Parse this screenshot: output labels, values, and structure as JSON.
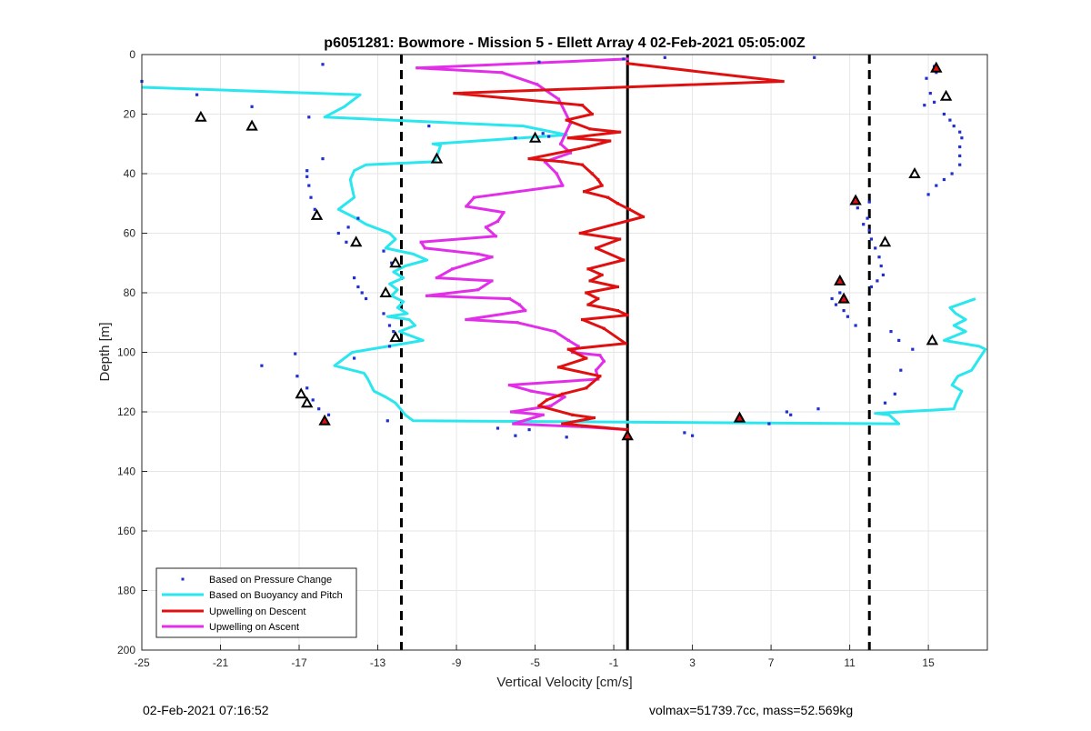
{
  "chart_data": {
    "type": "line",
    "title": "p6051281: Bowmore - Mission 5 - Ellett Array 4 02-Feb-2021 05:05:00Z",
    "xlabel": "Vertical Velocity [cm/s]",
    "ylabel": "Depth [m]",
    "xlim": [
      -25,
      18
    ],
    "ylim": [
      0,
      200
    ],
    "y_reversed": true,
    "grid": true,
    "legend_position": "bottom-left",
    "x_ticks": [
      -25,
      -21,
      -17,
      -13,
      -9,
      -5,
      -1,
      3,
      7,
      11,
      15
    ],
    "y_ticks": [
      0,
      20,
      40,
      60,
      80,
      100,
      120,
      140,
      160,
      180,
      200
    ],
    "reference_lines": {
      "solid_x": -0.3,
      "dashed_x": [
        -11.8,
        12
      ]
    },
    "series": [
      {
        "name": "Based on Pressure Change",
        "style": "points",
        "color": "#1f2fd0",
        "points": [
          [
            -25,
            9
          ],
          [
            -22.2,
            13.5
          ],
          [
            -15.8,
            3.3
          ],
          [
            -19.4,
            17.5
          ],
          [
            -16.5,
            21
          ],
          [
            -10.4,
            24
          ],
          [
            -6,
            28
          ],
          [
            -15.8,
            35
          ],
          [
            -16.6,
            39
          ],
          [
            -16.6,
            41
          ],
          [
            -16.5,
            44
          ],
          [
            -16.4,
            48
          ],
          [
            -16.2,
            52
          ],
          [
            -14,
            55
          ],
          [
            -14.5,
            58
          ],
          [
            -15,
            60
          ],
          [
            -14.6,
            63
          ],
          [
            -14.2,
            75
          ],
          [
            -14,
            78
          ],
          [
            -13.8,
            80
          ],
          [
            -13.6,
            82
          ],
          [
            -12.7,
            87
          ],
          [
            -12.4,
            91
          ],
          [
            -12.2,
            93
          ],
          [
            -12.4,
            98
          ],
          [
            -14.2,
            102
          ],
          [
            -17.2,
            100.5
          ],
          [
            -18.9,
            104.5
          ],
          [
            -17.1,
            108
          ],
          [
            -16.6,
            112
          ],
          [
            -16.3,
            116
          ],
          [
            -16,
            119
          ],
          [
            -15.5,
            121
          ],
          [
            -12.5,
            123
          ],
          [
            -6.9,
            125.5
          ],
          [
            -6,
            128
          ],
          [
            -5.3,
            126
          ],
          [
            -3.4,
            128.5
          ],
          [
            -0.3,
            129
          ],
          [
            3,
            128
          ],
          [
            2.6,
            127
          ],
          [
            6.9,
            124
          ],
          [
            8,
            121
          ],
          [
            7.8,
            120
          ],
          [
            9.4,
            119
          ],
          [
            -4.3,
            27.5
          ],
          [
            -4.6,
            26.5
          ],
          [
            -4.8,
            2.5
          ],
          [
            -0.5,
            1.5
          ],
          [
            1.6,
            1
          ],
          [
            9.2,
            1
          ],
          [
            15.3,
            4
          ],
          [
            15.4,
            6
          ],
          [
            14.9,
            8
          ],
          [
            15.1,
            13
          ],
          [
            15.3,
            16
          ],
          [
            14.8,
            17
          ],
          [
            15.8,
            20
          ],
          [
            16.1,
            22
          ],
          [
            16.3,
            24
          ],
          [
            16.6,
            26
          ],
          [
            16.7,
            28
          ],
          [
            16.6,
            31
          ],
          [
            16.6,
            34
          ],
          [
            16.6,
            37
          ],
          [
            16.2,
            40
          ],
          [
            15.8,
            42
          ],
          [
            15.4,
            44
          ],
          [
            15,
            47
          ],
          [
            12,
            49.5
          ],
          [
            11.4,
            51.5
          ],
          [
            11.9,
            55
          ],
          [
            11.7,
            57
          ],
          [
            12,
            59
          ],
          [
            12.1,
            62
          ],
          [
            12.3,
            65
          ],
          [
            12.5,
            68
          ],
          [
            12.6,
            71
          ],
          [
            12.7,
            74
          ],
          [
            12.4,
            76
          ],
          [
            12.1,
            78
          ],
          [
            10.5,
            80
          ],
          [
            10.1,
            82
          ],
          [
            10.3,
            84
          ],
          [
            10.7,
            86
          ],
          [
            10.9,
            88
          ],
          [
            11.3,
            91
          ],
          [
            13.1,
            93
          ],
          [
            13.5,
            96
          ],
          [
            14.2,
            99
          ],
          [
            13.6,
            106
          ],
          [
            13.3,
            114
          ],
          [
            12.8,
            117
          ],
          [
            -12.3,
            70
          ],
          [
            -12.7,
            66
          ]
        ]
      },
      {
        "name": "Based on Buoyancy and Pitch",
        "style": "line",
        "color": "#2ae6ee",
        "segments": [
          [
            [
              -25,
              11
            ],
            [
              -13.9,
              13.5
            ],
            [
              -14.7,
              17.5
            ],
            [
              -15.7,
              21
            ],
            [
              -5.6,
              24
            ],
            [
              -3.4,
              27
            ],
            [
              -10.2,
              30
            ],
            [
              -9.8,
              30.5
            ],
            [
              -10.1,
              36
            ],
            [
              -13.6,
              37
            ],
            [
              -14.2,
              39
            ],
            [
              -14.4,
              42
            ],
            [
              -14.3,
              45
            ],
            [
              -14.2,
              48
            ],
            [
              -14.8,
              51
            ],
            [
              -15,
              52
            ],
            [
              -14.1,
              55
            ],
            [
              -13.6,
              57
            ],
            [
              -12.4,
              60
            ],
            [
              -12.1,
              62
            ],
            [
              -12.6,
              65
            ],
            [
              -11.2,
              67
            ],
            [
              -10.5,
              69
            ],
            [
              -11.6,
              71
            ],
            [
              -12.2,
              73
            ],
            [
              -11.7,
              75
            ],
            [
              -12.4,
              77
            ],
            [
              -12,
              79
            ],
            [
              -12.3,
              81
            ],
            [
              -11.7,
              83
            ],
            [
              -12,
              85
            ],
            [
              -11.5,
              87
            ],
            [
              -12.5,
              88
            ],
            [
              -11.4,
              89
            ],
            [
              -11.1,
              91
            ],
            [
              -11.9,
              93
            ],
            [
              -10.7,
              96
            ],
            [
              -14.3,
              100
            ],
            [
              -15.2,
              104.5
            ],
            [
              -13.7,
              107
            ],
            [
              -13.5,
              109
            ],
            [
              -13.2,
              113
            ],
            [
              -12.6,
              115
            ],
            [
              -12.1,
              117
            ],
            [
              -11.6,
              121
            ],
            [
              -11.2,
              123
            ],
            [
              13.5,
              124
            ],
            [
              13,
              121
            ],
            [
              12.3,
              120.5
            ],
            [
              16.3,
              119
            ],
            [
              16.4,
              117
            ],
            [
              16.7,
              113
            ],
            [
              16.2,
              111
            ],
            [
              16.5,
              108
            ],
            [
              17.2,
              106
            ],
            [
              17.9,
              99
            ],
            [
              17.6,
              98
            ],
            [
              15.8,
              96
            ],
            [
              16.9,
              93
            ],
            [
              16.3,
              91
            ],
            [
              16.9,
              89
            ],
            [
              16.4,
              87
            ],
            [
              16.1,
              85
            ],
            [
              17.4,
              82
            ]
          ]
        ]
      },
      {
        "name": "Upwelling on Descent",
        "style": "line",
        "color": "#e01010",
        "points": [
          [
            -0.3,
            3
          ],
          [
            7.6,
            9
          ],
          [
            -9.1,
            13
          ],
          [
            -2.6,
            17
          ],
          [
            -2.1,
            20
          ],
          [
            -3.4,
            22
          ],
          [
            -2.2,
            25
          ],
          [
            -0.7,
            26
          ],
          [
            -3.3,
            28
          ],
          [
            -1.2,
            29
          ],
          [
            -2.3,
            31
          ],
          [
            -5.3,
            35
          ],
          [
            -3.6,
            36
          ],
          [
            -2.6,
            37
          ],
          [
            -2.1,
            40
          ],
          [
            -1.8,
            42
          ],
          [
            -1.6,
            44
          ],
          [
            -2.5,
            46
          ],
          [
            -1.3,
            48
          ],
          [
            -0.8,
            50
          ],
          [
            -0.2,
            52
          ],
          [
            0.5,
            54.5
          ],
          [
            -2.7,
            60
          ],
          [
            -0.7,
            62
          ],
          [
            -1.9,
            65
          ],
          [
            -0.5,
            69
          ],
          [
            -2.3,
            72
          ],
          [
            -1.6,
            74
          ],
          [
            -2.2,
            76
          ],
          [
            -0.8,
            78
          ],
          [
            -2.4,
            80
          ],
          [
            -1.8,
            82
          ],
          [
            -2.3,
            84
          ],
          [
            -0.8,
            86
          ],
          [
            -0.3,
            87.5
          ],
          [
            -2.6,
            89
          ],
          [
            -1.5,
            92
          ],
          [
            -0.4,
            97
          ],
          [
            -3.3,
            99
          ],
          [
            -2.4,
            102
          ],
          [
            -3.8,
            105
          ],
          [
            -1.7,
            108
          ],
          [
            -2.4,
            112
          ],
          [
            -3.6,
            114
          ],
          [
            -4.4,
            116
          ],
          [
            -4.8,
            118
          ],
          [
            -3.1,
            121
          ],
          [
            -2,
            122
          ],
          [
            -3.6,
            124
          ],
          [
            -0.3,
            126
          ],
          [
            -0.3,
            128
          ]
        ]
      },
      {
        "name": "Upwelling on Ascent",
        "style": "line",
        "color": "#e22ee8",
        "points": [
          [
            -0.3,
            1.5
          ],
          [
            -11,
            4.5
          ],
          [
            -6.7,
            6
          ],
          [
            -4.9,
            10
          ],
          [
            -3.8,
            15
          ],
          [
            -3.2,
            23
          ],
          [
            -3.7,
            30
          ],
          [
            -3.2,
            33
          ],
          [
            -4.5,
            36
          ],
          [
            -3.9,
            40
          ],
          [
            -3.6,
            44
          ],
          [
            -8.1,
            48
          ],
          [
            -8.5,
            51
          ],
          [
            -6.6,
            53
          ],
          [
            -6.9,
            56
          ],
          [
            -7.5,
            58
          ],
          [
            -7,
            61
          ],
          [
            -10.8,
            63
          ],
          [
            -10.6,
            65
          ],
          [
            -7.9,
            67
          ],
          [
            -7.2,
            68
          ],
          [
            -9.2,
            72
          ],
          [
            -10,
            75
          ],
          [
            -7.2,
            76
          ],
          [
            -7.9,
            79
          ],
          [
            -10.5,
            81
          ],
          [
            -6.3,
            82
          ],
          [
            -5.8,
            84
          ],
          [
            -5.5,
            86
          ],
          [
            -8.5,
            89
          ],
          [
            -5.9,
            90
          ],
          [
            -4,
            93
          ],
          [
            -3.3,
            96
          ],
          [
            -2.8,
            98
          ],
          [
            -3.1,
            100
          ],
          [
            -1.7,
            101
          ],
          [
            -1.5,
            103
          ],
          [
            -1.9,
            106
          ],
          [
            -1.8,
            109
          ],
          [
            -6.3,
            111
          ],
          [
            -5.2,
            113
          ],
          [
            -3.5,
            115
          ],
          [
            -4.2,
            118
          ],
          [
            -6.2,
            120
          ],
          [
            -4.6,
            121
          ],
          [
            -6.1,
            124
          ],
          [
            -2.6,
            125
          ],
          [
            -0.3,
            126
          ]
        ]
      }
    ],
    "markers": [
      {
        "x": -22,
        "y": 21,
        "color": "#000000",
        "filled": false
      },
      {
        "x": -19.4,
        "y": 24,
        "color": "#000000",
        "filled": false
      },
      {
        "x": -16.1,
        "y": 54,
        "color": "#000000",
        "filled": false
      },
      {
        "x": -14.1,
        "y": 63,
        "color": "#000000",
        "filled": false
      },
      {
        "x": -12.1,
        "y": 70,
        "color": "#000000",
        "filled": false
      },
      {
        "x": -12.6,
        "y": 80,
        "color": "#000000",
        "filled": false
      },
      {
        "x": -12.1,
        "y": 95,
        "color": "#000000",
        "filled": false
      },
      {
        "x": -16.9,
        "y": 114,
        "color": "#000000",
        "filled": false
      },
      {
        "x": -16.6,
        "y": 117,
        "color": "#000000",
        "filled": false
      },
      {
        "x": -15.7,
        "y": 123,
        "color": "#e01010",
        "filled": true
      },
      {
        "x": -10,
        "y": 35,
        "color": "#000000",
        "filled": false
      },
      {
        "x": -5,
        "y": 28,
        "color": "#000000",
        "filled": false
      },
      {
        "x": -0.3,
        "y": 128,
        "color": "#e01010",
        "filled": true
      },
      {
        "x": 5.4,
        "y": 122,
        "color": "#e01010",
        "filled": true
      },
      {
        "x": 15.4,
        "y": 4.5,
        "color": "#e01010",
        "filled": true
      },
      {
        "x": 15.9,
        "y": 14,
        "color": "#000000",
        "filled": false
      },
      {
        "x": 14.3,
        "y": 40,
        "color": "#000000",
        "filled": false
      },
      {
        "x": 11.3,
        "y": 49,
        "color": "#e01010",
        "filled": true
      },
      {
        "x": 12.8,
        "y": 63,
        "color": "#000000",
        "filled": false
      },
      {
        "x": 10.5,
        "y": 76,
        "color": "#e01010",
        "filled": true
      },
      {
        "x": 10.7,
        "y": 82,
        "color": "#e01010",
        "filled": true
      },
      {
        "x": 15.2,
        "y": 96,
        "color": "#000000",
        "filled": false
      }
    ]
  },
  "footer": {
    "left": "02-Feb-2021 07:16:52",
    "right": "volmax=51739.7cc, mass=52.569kg"
  }
}
